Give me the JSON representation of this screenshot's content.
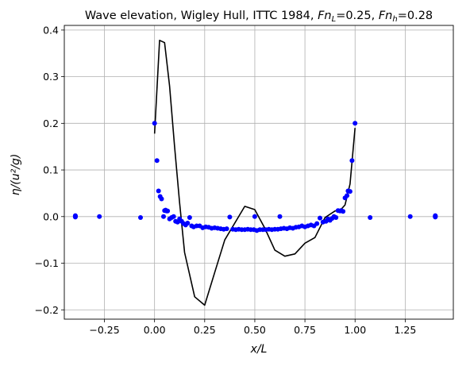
{
  "chart_data": {
    "type": "line",
    "title": "Wave elevation, Wigley Hull, ITTC 1984, ",
    "title_math": [
      {
        "sym": "Fn",
        "sub": "L",
        "val": "=0.25, "
      },
      {
        "sym": "Fn",
        "sub": "h",
        "val": "=0.28"
      }
    ],
    "xlabel": "x/L",
    "ylabel": "η/(u²/g)",
    "xlim": [
      -0.45,
      1.49
    ],
    "ylim": [
      -0.22,
      0.41
    ],
    "xticks": [
      -0.25,
      0.0,
      0.25,
      0.5,
      0.75,
      1.0,
      1.25
    ],
    "xtick_labels": [
      "−0.25",
      "0.00",
      "0.25",
      "0.50",
      "0.75",
      "1.00",
      "1.25"
    ],
    "yticks": [
      -0.2,
      -0.1,
      0.0,
      0.1,
      0.2,
      0.3,
      0.4
    ],
    "ytick_labels": [
      "−0.2",
      "−0.1",
      "0.0",
      "0.1",
      "0.2",
      "0.3",
      "0.4"
    ],
    "grid": true,
    "colors": {
      "line": "#000000",
      "points": "#0000ff",
      "grid": "#b0b0b0"
    },
    "series": [
      {
        "kind": "line",
        "x": [
          0.0,
          0.025,
          0.05,
          0.075,
          0.1,
          0.125,
          0.15,
          0.2,
          0.25,
          0.3,
          0.35,
          0.45,
          0.5,
          0.55,
          0.6,
          0.65,
          0.7,
          0.75,
          0.8,
          0.85,
          0.9,
          0.925,
          0.95,
          0.975,
          1.0
        ],
        "y": [
          0.178,
          0.378,
          0.373,
          0.28,
          0.15,
          0.03,
          -0.077,
          -0.172,
          -0.19,
          -0.12,
          -0.05,
          0.022,
          0.015,
          -0.025,
          -0.072,
          -0.085,
          -0.08,
          -0.057,
          -0.045,
          -0.002,
          0.012,
          0.013,
          0.025,
          0.07,
          0.19
        ]
      },
      {
        "kind": "scatter",
        "x": [
          -0.395,
          -0.395,
          -0.395,
          -0.395,
          -0.275,
          -0.07,
          0.0,
          0.012,
          0.02,
          0.028,
          0.035,
          0.045,
          0.05,
          0.055,
          0.06,
          0.065,
          0.075,
          0.085,
          0.095,
          0.105,
          0.115,
          0.125,
          0.135,
          0.145,
          0.155,
          0.165,
          0.175,
          0.185,
          0.195,
          0.21,
          0.225,
          0.24,
          0.255,
          0.27,
          0.285,
          0.3,
          0.315,
          0.33,
          0.345,
          0.36,
          0.375,
          0.39,
          0.405,
          0.42,
          0.435,
          0.45,
          0.465,
          0.48,
          0.495,
          0.5,
          0.51,
          0.525,
          0.54,
          0.555,
          0.57,
          0.585,
          0.6,
          0.615,
          0.625,
          0.63,
          0.645,
          0.66,
          0.675,
          0.69,
          0.705,
          0.72,
          0.735,
          0.75,
          0.765,
          0.78,
          0.795,
          0.81,
          0.825,
          0.84,
          0.855,
          0.865,
          0.875,
          0.885,
          0.895,
          0.905,
          0.915,
          0.925,
          0.93,
          0.94,
          0.95,
          0.96,
          0.965,
          0.975,
          0.985,
          1.0,
          1.075,
          1.275,
          1.4,
          1.4,
          1.4,
          1.4
        ],
        "y": [
          0.002,
          0.0,
          -0.001,
          0.001,
          0.0,
          -0.002,
          0.2,
          0.12,
          0.055,
          0.043,
          0.038,
          0.0,
          0.013,
          0.014,
          0.012,
          0.012,
          -0.005,
          -0.002,
          0.0,
          -0.01,
          -0.012,
          -0.005,
          -0.01,
          -0.015,
          -0.018,
          -0.014,
          -0.002,
          -0.02,
          -0.022,
          -0.02,
          -0.02,
          -0.024,
          -0.022,
          -0.023,
          -0.025,
          -0.024,
          -0.025,
          -0.026,
          -0.027,
          -0.026,
          -0.001,
          -0.027,
          -0.028,
          -0.027,
          -0.028,
          -0.028,
          -0.027,
          -0.028,
          -0.028,
          0.0,
          -0.03,
          -0.028,
          -0.028,
          -0.028,
          -0.027,
          -0.028,
          -0.027,
          -0.027,
          0.0,
          -0.026,
          -0.025,
          -0.026,
          -0.024,
          -0.025,
          -0.023,
          -0.022,
          -0.02,
          -0.022,
          -0.02,
          -0.018,
          -0.02,
          -0.015,
          -0.003,
          -0.012,
          -0.01,
          -0.005,
          -0.008,
          -0.004,
          0.0,
          -0.002,
          0.013,
          0.012,
          0.013,
          0.011,
          0.04,
          0.045,
          0.055,
          0.054,
          0.12,
          0.2,
          -0.002,
          0.0,
          0.001,
          0.0,
          -0.001,
          0.002
        ]
      }
    ]
  }
}
